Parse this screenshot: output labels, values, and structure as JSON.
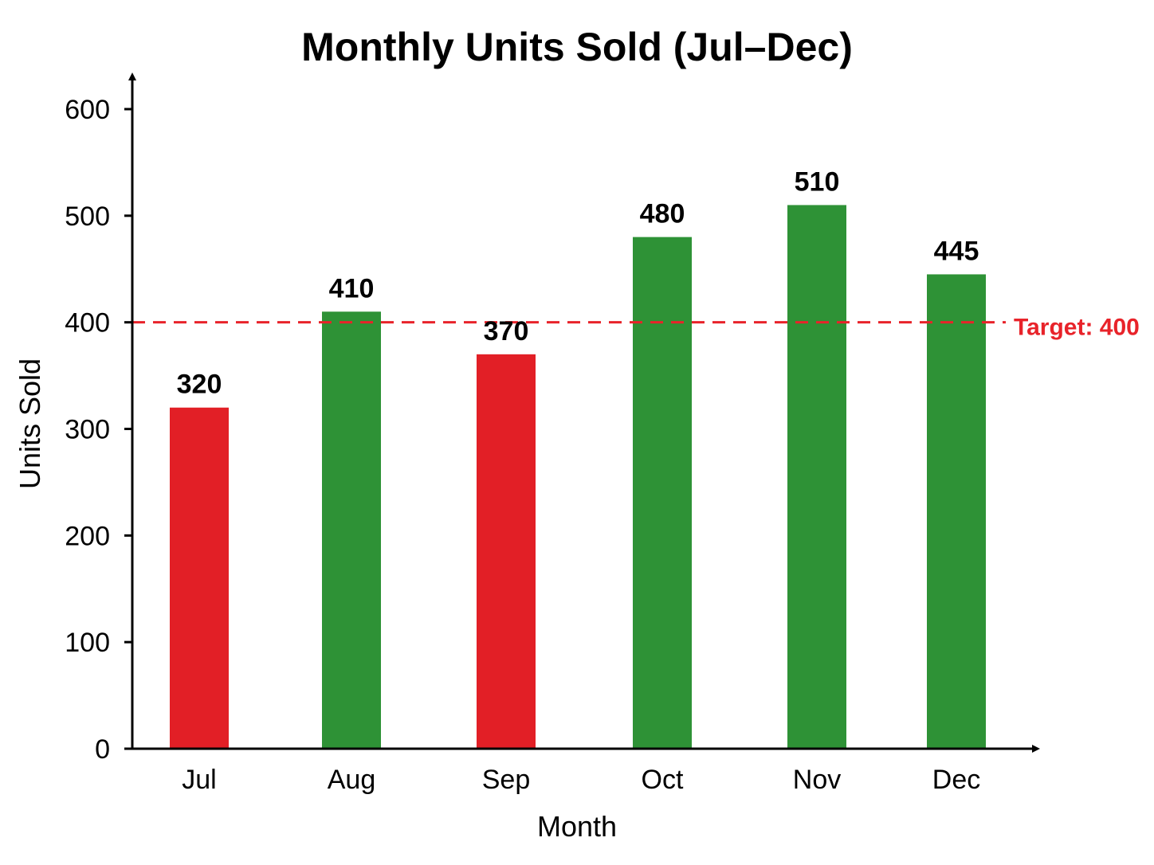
{
  "chart_data": {
    "type": "bar",
    "title": "Monthly Units Sold (Jul–Dec)",
    "xlabel": "Month",
    "ylabel": "Units Sold",
    "categories": [
      "Jul",
      "Aug",
      "Sep",
      "Oct",
      "Nov",
      "Dec"
    ],
    "values": [
      320,
      410,
      370,
      480,
      510,
      445
    ],
    "data_labels": [
      "320",
      "410",
      "370",
      "480",
      "510",
      "445"
    ],
    "bar_colors": [
      "#e21f26",
      "#2e9236",
      "#e21f26",
      "#2e9236",
      "#2e9236",
      "#2e9236"
    ],
    "ylim": [
      0,
      600
    ],
    "yticks": [
      0,
      100,
      200,
      300,
      400,
      500,
      600
    ],
    "ytick_labels": [
      "0",
      "100",
      "200",
      "300",
      "400",
      "500",
      "600"
    ],
    "grid": false,
    "legend": "none",
    "target": {
      "value": 400,
      "label": "Target: 400",
      "color": "#e8232a",
      "style": "dashed"
    },
    "colors": {
      "above_target": "#2e9236",
      "below_target": "#e21f26",
      "axis": "#000000"
    }
  }
}
